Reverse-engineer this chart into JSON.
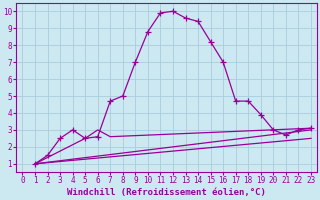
{
  "xlabel": "Windchill (Refroidissement éolien,°C)",
  "background_color": "#cce8f0",
  "grid_color": "#aaccdd",
  "line_color": "#990099",
  "xlim": [
    -0.5,
    23.5
  ],
  "ylim": [
    0.5,
    10.5
  ],
  "xticks": [
    0,
    1,
    2,
    3,
    4,
    5,
    6,
    7,
    8,
    9,
    10,
    11,
    12,
    13,
    14,
    15,
    16,
    17,
    18,
    19,
    20,
    21,
    22,
    23
  ],
  "yticks": [
    1,
    2,
    3,
    4,
    5,
    6,
    7,
    8,
    9,
    10
  ],
  "curve1_x": [
    1,
    2,
    3,
    4,
    5,
    6,
    7,
    8,
    9,
    10,
    11,
    12,
    13,
    14,
    15,
    16,
    17,
    18,
    19,
    20,
    21,
    22,
    23
  ],
  "curve1_y": [
    1.0,
    1.5,
    2.5,
    3.0,
    2.5,
    2.6,
    4.7,
    5.0,
    7.0,
    8.8,
    9.9,
    10.0,
    9.6,
    9.4,
    8.2,
    7.0,
    4.7,
    4.7,
    3.9,
    3.0,
    2.7,
    3.0,
    3.1
  ],
  "line2_x": [
    1,
    5,
    6,
    7,
    23
  ],
  "line2_y": [
    1.0,
    2.5,
    3.0,
    2.6,
    3.1
  ],
  "line3_x": [
    1,
    23
  ],
  "line3_y": [
    1.0,
    3.0
  ],
  "line4_x": [
    1,
    23
  ],
  "line4_y": [
    1.0,
    2.5
  ],
  "marker": "+",
  "marker_size": 5,
  "linewidth": 0.9,
  "xlabel_fontsize": 6.5,
  "tick_fontsize": 5.5
}
